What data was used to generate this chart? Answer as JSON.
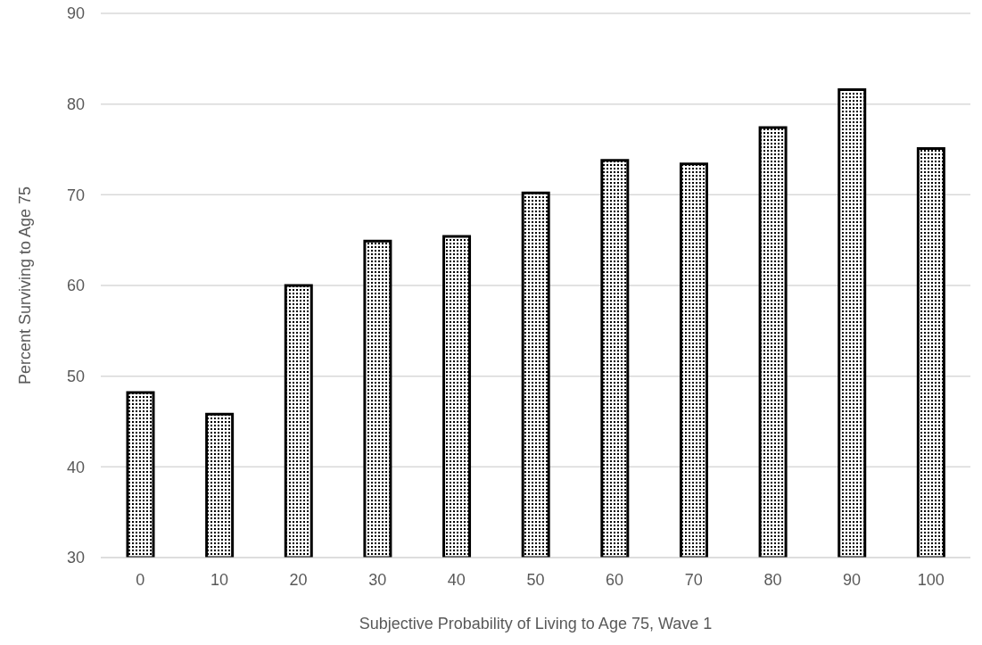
{
  "chart_data": {
    "type": "bar",
    "xlabel": "Subjective Probability of Living to Age 75, Wave 1",
    "ylabel": "Percent Surviving to Age 75",
    "categories": [
      "0",
      "10",
      "20",
      "30",
      "40",
      "50",
      "60",
      "70",
      "80",
      "90",
      "100"
    ],
    "values": [
      48.2,
      45.8,
      60.0,
      64.9,
      65.4,
      70.2,
      73.8,
      73.4,
      77.4,
      81.6,
      75.1
    ],
    "color": "#000000",
    "ylim": [
      30,
      90
    ],
    "yticks": [
      30,
      40,
      50,
      60,
      70,
      80,
      90
    ],
    "grid": "y"
  }
}
